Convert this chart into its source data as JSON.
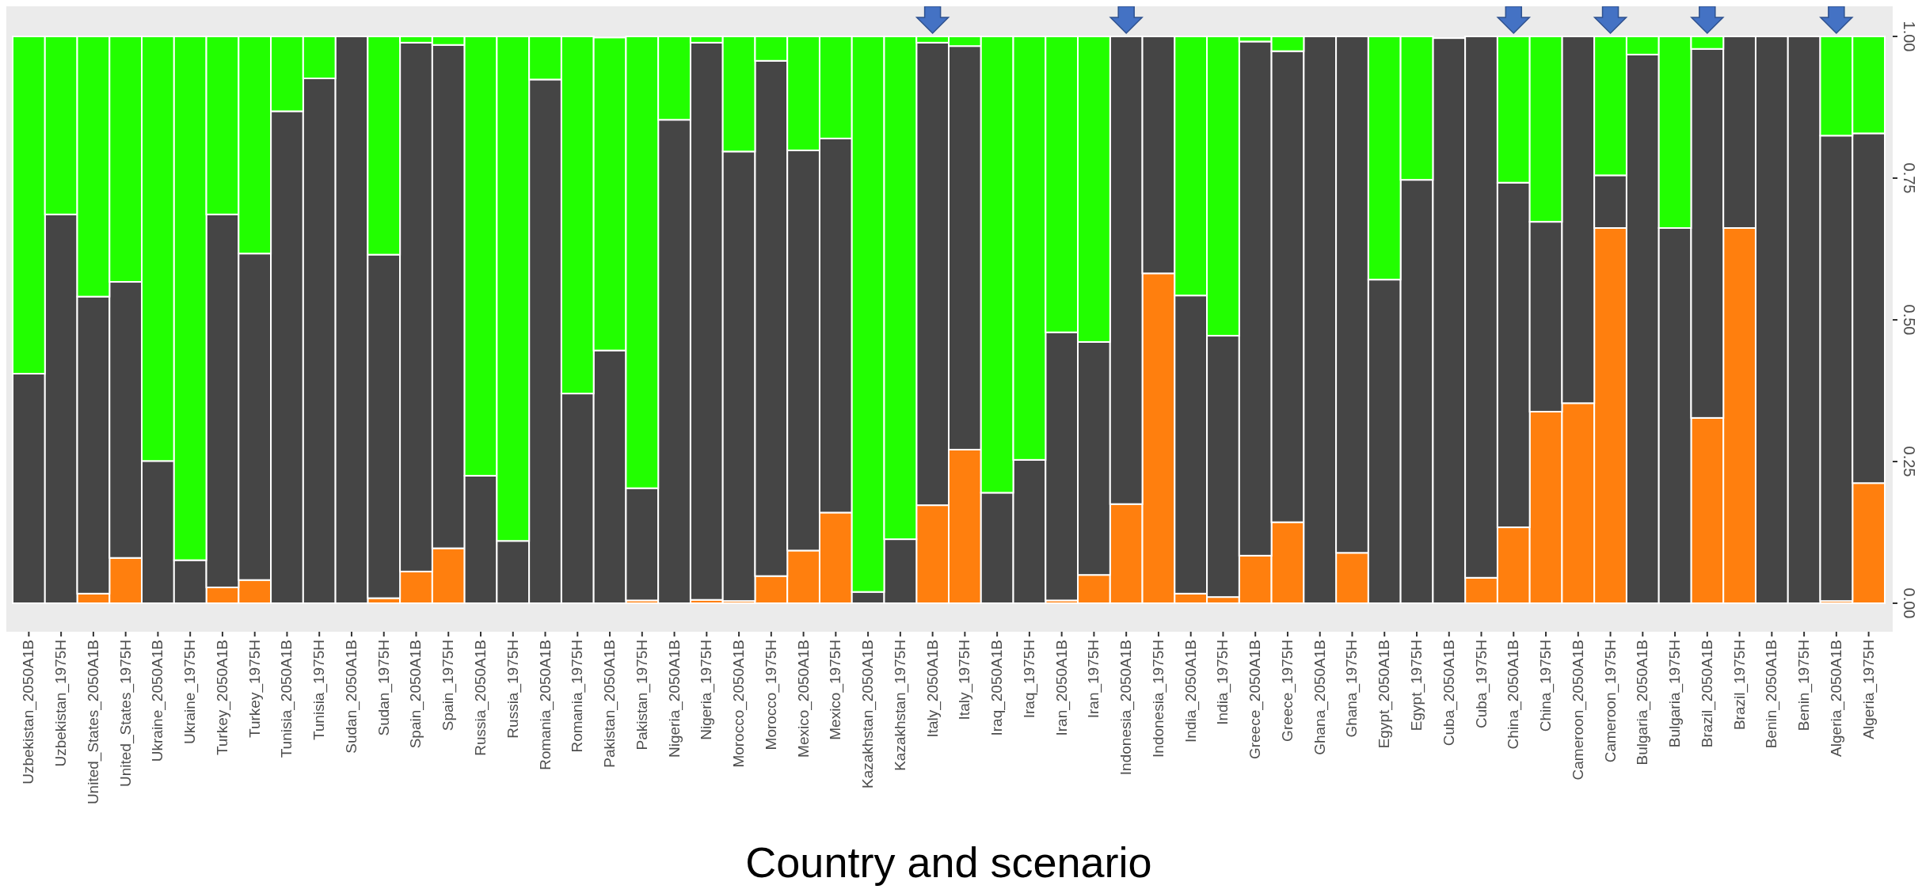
{
  "chart_data": {
    "type": "bar",
    "stacked": true,
    "xlabel": "Country and scenario",
    "categories": [
      "Uzbekistan_2050A1B",
      "Uzbekistan_1975H",
      "United_States_2050A1B",
      "United_States_1975H",
      "Ukraine_2050A1B",
      "Ukraine_1975H",
      "Turkey_2050A1B",
      "Turkey_1975H",
      "Tunisia_2050A1B",
      "Tunisia_1975H",
      "Sudan_2050A1B",
      "Sudan_1975H",
      "Spain_2050A1B",
      "Spain_1975H",
      "Russia_2050A1B",
      "Russia_1975H",
      "Romania_2050A1B",
      "Romania_1975H",
      "Pakistan_2050A1B",
      "Pakistan_1975H",
      "Nigeria_2050A1B",
      "Nigeria_1975H",
      "Morocco_2050A1B",
      "Morocco_1975H",
      "Mexico_2050A1B",
      "Mexico_1975H",
      "Kazakhstan_2050A1B",
      "Kazakhstan_1975H",
      "Italy_2050A1B",
      "Italy_1975H",
      "Iraq_2050A1B",
      "Iraq_1975H",
      "Iran_2050A1B",
      "Iran_1975H",
      "Indonesia_2050A1B",
      "Indonesia_1975H",
      "India_2050A1B",
      "India_1975H",
      "Greece_2050A1B",
      "Greece_1975H",
      "Ghana_2050A1B",
      "Ghana_1975H",
      "Egypt_2050A1B",
      "Egypt_1975H",
      "Cuba_2050A1B",
      "Cuba_1975H",
      "China_2050A1B",
      "China_1975H",
      "Cameroon_2050A1B",
      "Cameroon_1975H",
      "Bulgaria_2050A1B",
      "Bulgaria_1975H",
      "Brazil_2050A1B",
      "Brazil_1975H",
      "Benin_2050A1B",
      "Benin_1975H",
      "Algeria_2050A1B",
      "Algeria_1975H"
    ],
    "series": [
      {
        "color": "#ff7f0e",
        "values": [
          0,
          0,
          0.017,
          0.08,
          0,
          0,
          0.028,
          0.041,
          0,
          0,
          0,
          0.009,
          0.056,
          0.097,
          0,
          0,
          0,
          0,
          null,
          0.005,
          0,
          0.006,
          0.004,
          0.048,
          0.093,
          0.16,
          0,
          0,
          0.173,
          0.271,
          0,
          0,
          0.005,
          0.05,
          0.175,
          0.582,
          0.017,
          0.011,
          0.084,
          0.143,
          0,
          0.089,
          0,
          0,
          null,
          0.045,
          0.134,
          0.338,
          0.353,
          0.662,
          0,
          0,
          0.327,
          0.662,
          0,
          0,
          0.004,
          0.212
        ]
      },
      {
        "color": "#454545",
        "values": [
          0.405,
          0.686,
          0.524,
          0.487,
          0.251,
          0.076,
          0.658,
          0.576,
          0.868,
          0.926,
          1,
          0.606,
          0.933,
          0.888,
          0.225,
          0.11,
          0.924,
          0.37,
          0.446,
          0.198,
          0.853,
          0.983,
          0.793,
          0.909,
          0.706,
          0.66,
          0.02,
          0.113,
          0.816,
          0.712,
          0.195,
          0.253,
          0.473,
          0.411,
          0.825,
          0.418,
          0.526,
          0.461,
          0.907,
          0.831,
          1,
          0.911,
          0.571,
          0.747,
          0.997,
          0.955,
          0.608,
          0.335,
          0.647,
          0.093,
          0.968,
          0.662,
          0.651,
          0.338,
          1,
          1,
          0.821,
          0.617
        ]
      },
      {
        "color": "#22ff00",
        "values": [
          0.595,
          0.314,
          0.459,
          0.433,
          0.749,
          0.924,
          0.314,
          0.383,
          0.132,
          0.074,
          0,
          0.385,
          0.011,
          0.015,
          0.775,
          0.89,
          0.076,
          0.63,
          0.552,
          0.797,
          0.147,
          0.011,
          0.203,
          0.043,
          0.201,
          0.18,
          0.98,
          0.887,
          0.011,
          0.017,
          0.805,
          0.747,
          0.522,
          0.539,
          0,
          0,
          0.457,
          0.528,
          0.009,
          0.026,
          0,
          0,
          0.429,
          0.253,
          0,
          0,
          0.258,
          0.327,
          0,
          0.245,
          0.032,
          0.338,
          0.022,
          0,
          0,
          0,
          0.175,
          0.171
        ]
      }
    ],
    "ylim": [
      0,
      1
    ],
    "yticks": [
      {
        "value": 0,
        "label": "0.00"
      },
      {
        "value": 0.25,
        "label": "0.25"
      },
      {
        "value": 0.5,
        "label": "0.50"
      },
      {
        "value": 0.75,
        "label": "0.75"
      },
      {
        "value": 1,
        "label": "1.00"
      }
    ]
  }
}
